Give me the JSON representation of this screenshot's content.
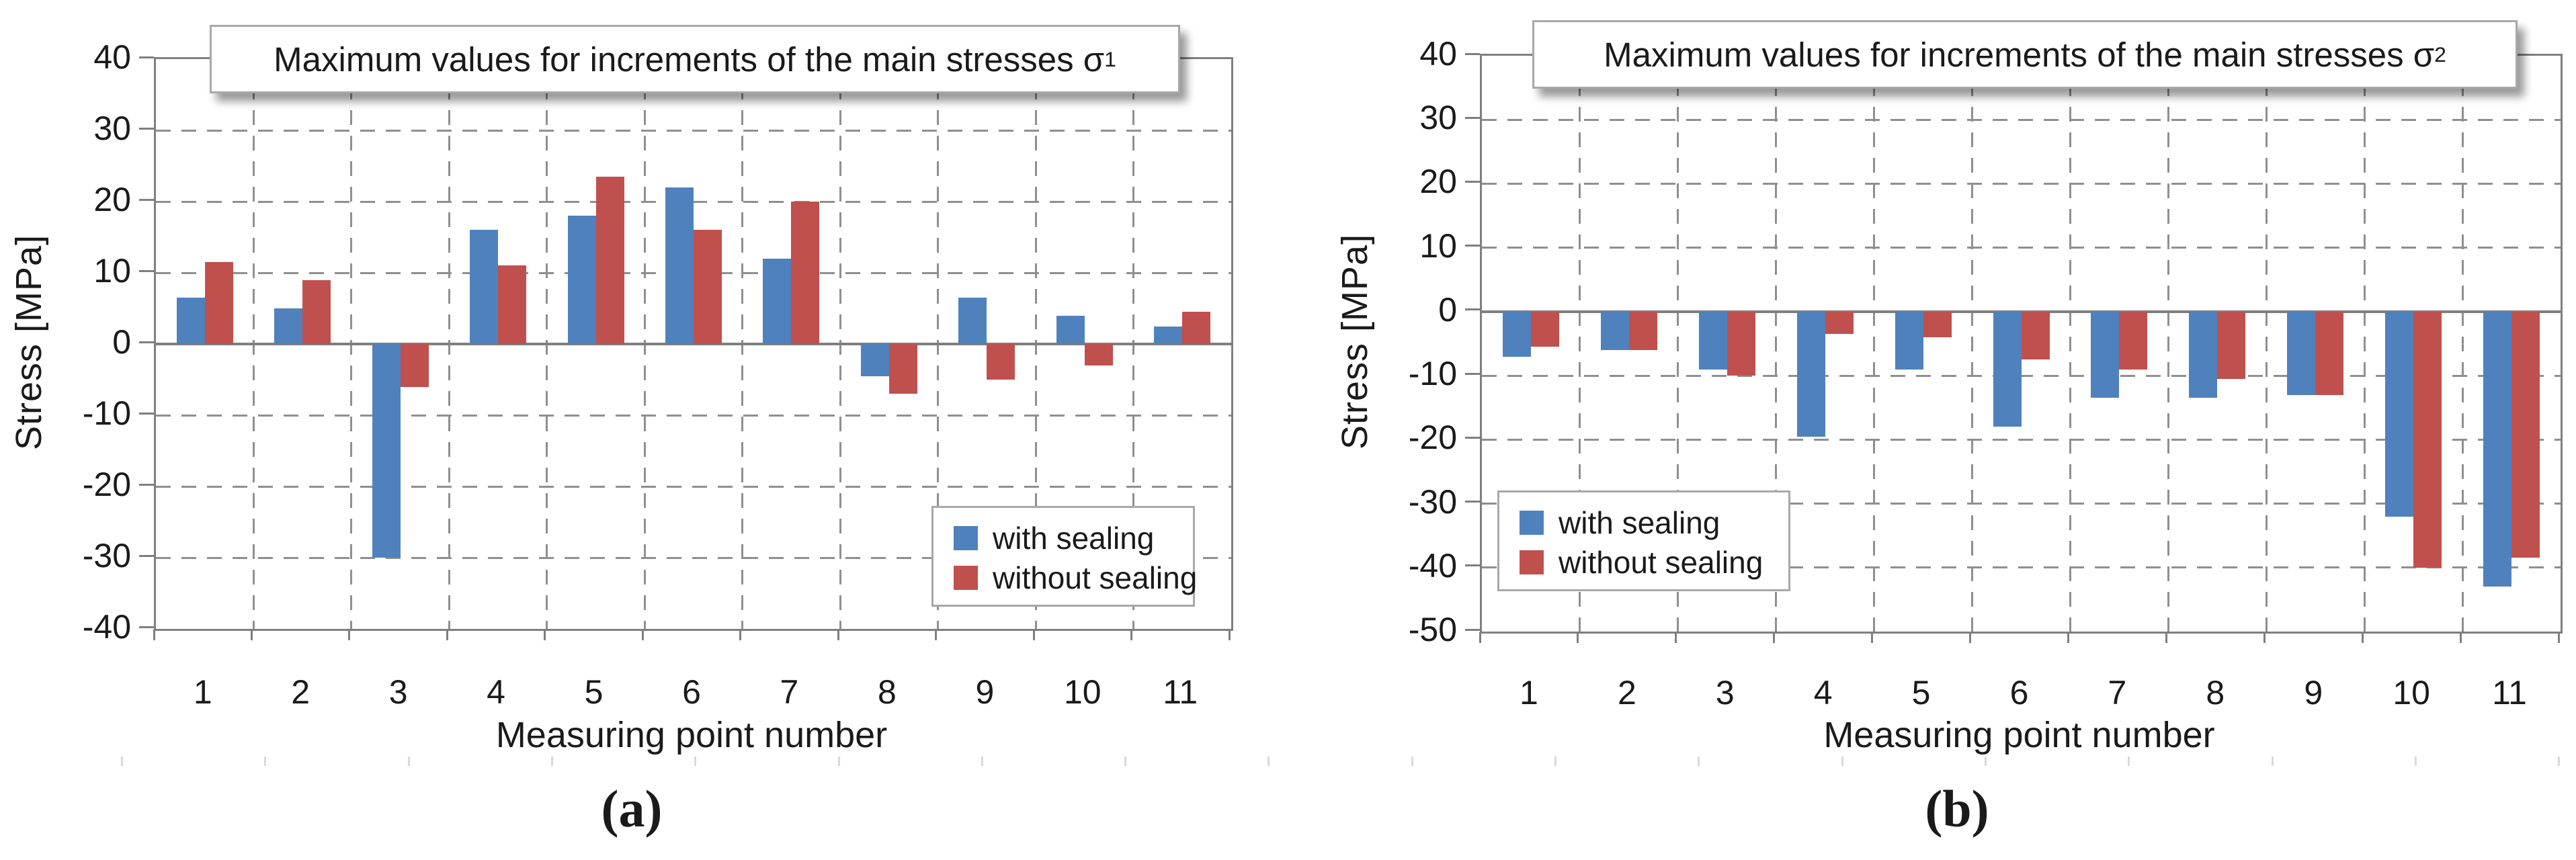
{
  "figure": {
    "panel_a_caption": "(a)",
    "panel_b_caption": "(b)"
  },
  "colors": {
    "with_sealing": "#4F81BD",
    "without_sealing": "#C0504D",
    "axis": "#7f7f7f",
    "gridline": "#8f8f8f",
    "canvas_tick": "#d9d9d9"
  },
  "chart_data": [
    {
      "type": "bar",
      "panel": "a",
      "title": "Maximum values for increments of the main stresses σ",
      "title_subscript": "1",
      "ylabel": "Stress [MPa]",
      "xlabel": "Measuring point number",
      "caption": "(a)",
      "ylim": [
        -40,
        40
      ],
      "ytick_step": 10,
      "grid": true,
      "legend_position": "lower right",
      "categories": [
        "1",
        "2",
        "3",
        "4",
        "5",
        "6",
        "7",
        "8",
        "9",
        "10",
        "11"
      ],
      "series": [
        {
          "name": "with sealing",
          "color": "#4F81BD",
          "values": [
            6.5,
            5,
            -30,
            16,
            18,
            22,
            12,
            -4.5,
            6.5,
            4,
            2.5
          ]
        },
        {
          "name": "without sealing",
          "color": "#C0504D",
          "values": [
            11.5,
            9,
            -6,
            11,
            23.5,
            16,
            20,
            -7,
            -5,
            -3,
            4.5
          ]
        }
      ]
    },
    {
      "type": "bar",
      "panel": "b",
      "title": "Maximum values for increments of the main stresses σ",
      "title_subscript": "2",
      "ylabel": "Stress [MPa]",
      "xlabel": "Measuring point number",
      "caption": "(b)",
      "ylim": [
        -50,
        40
      ],
      "ytick_step": 10,
      "grid": true,
      "legend_position": "lower left",
      "categories": [
        "1",
        "2",
        "3",
        "4",
        "5",
        "6",
        "7",
        "8",
        "9",
        "10",
        "11"
      ],
      "series": [
        {
          "name": "with sealing",
          "color": "#4F81BD",
          "values": [
            -7,
            -6,
            -9,
            -19.5,
            -9,
            -18,
            -13.5,
            -13.5,
            -13,
            -32,
            -43
          ]
        },
        {
          "name": "without sealing",
          "color": "#C0504D",
          "values": [
            -5.5,
            -6,
            -10,
            -3.5,
            -4,
            -7.5,
            -9,
            -10.5,
            -13,
            -40,
            -38.5
          ]
        }
      ]
    }
  ]
}
